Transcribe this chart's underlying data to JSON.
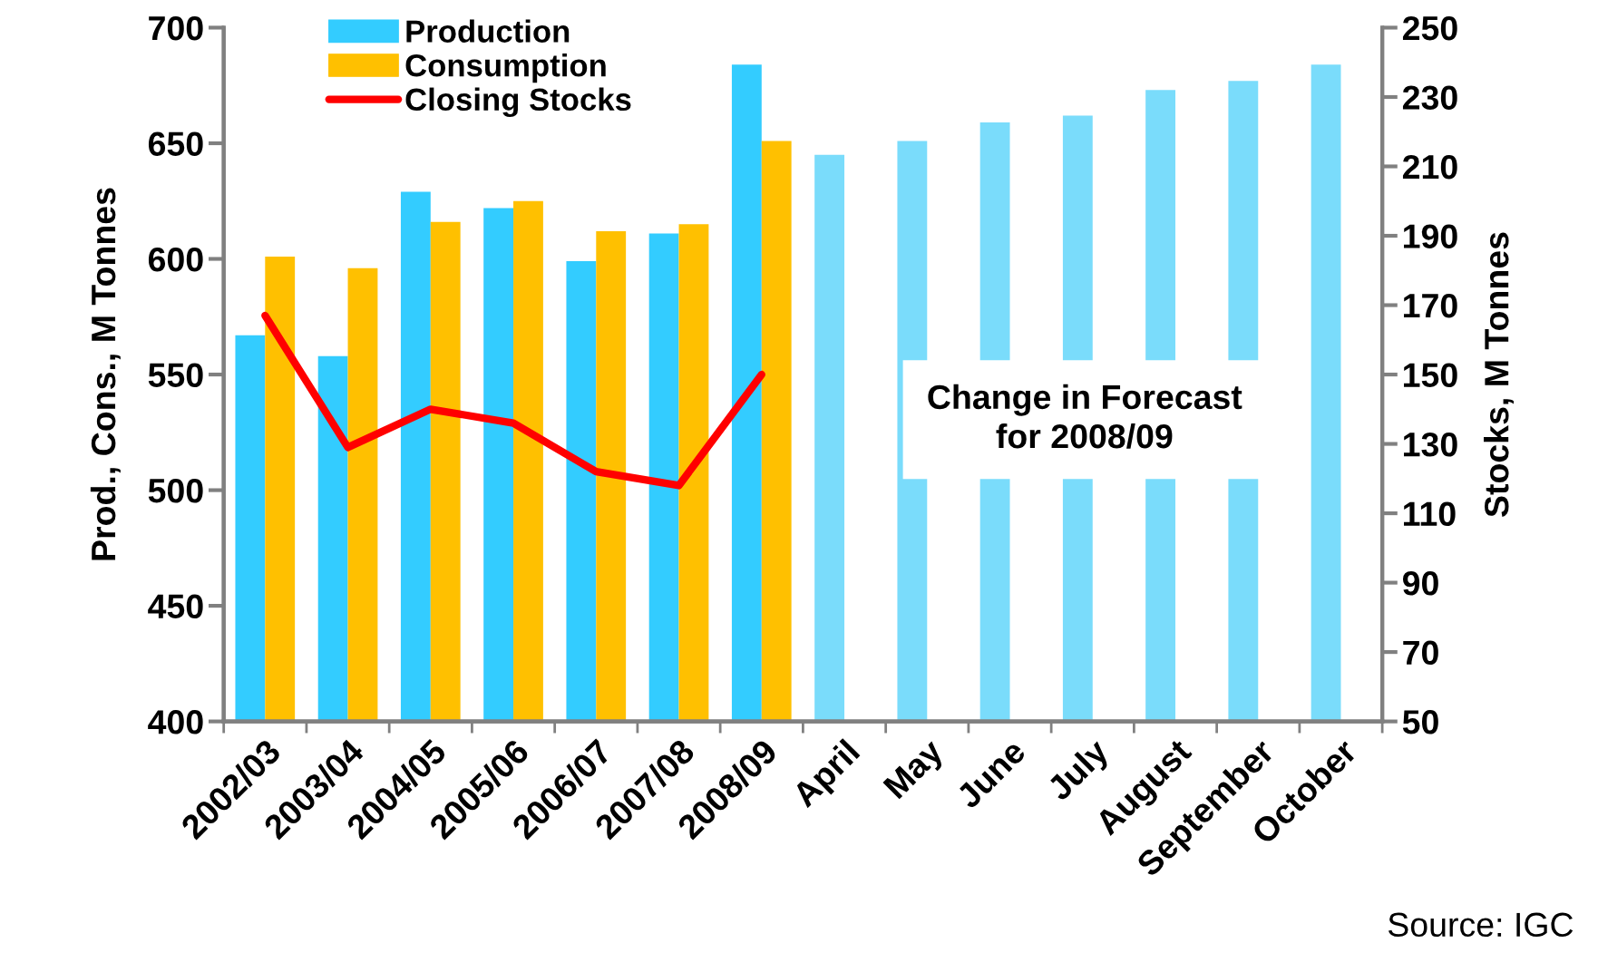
{
  "chart_data": {
    "type": "bar",
    "categories": [
      "2002/03",
      "2003/04",
      "2004/05",
      "2005/06",
      "2006/07",
      "2007/08",
      "2008/09",
      "April",
      "May",
      "June",
      "July",
      "August",
      "September",
      "October"
    ],
    "series": [
      {
        "name": "Production",
        "color": "#33ccff",
        "colors": [
          "#33ccff",
          "#33ccff",
          "#33ccff",
          "#33ccff",
          "#33ccff",
          "#33ccff",
          "#33ccff",
          "#7adcfb",
          "#7adcfb",
          "#7adcfb",
          "#7adcfb",
          "#7adcfb",
          "#7adcfb",
          "#7adcfb"
        ],
        "values": [
          567,
          558,
          629,
          622,
          599,
          611,
          684,
          645,
          651,
          659,
          662,
          673,
          677,
          684
        ]
      },
      {
        "name": "Consumption",
        "color": "#ffc000",
        "values": [
          601,
          596,
          616,
          625,
          612,
          615,
          651,
          null,
          null,
          null,
          null,
          null,
          null,
          null
        ]
      },
      {
        "name": "Closing Stocks",
        "type": "line",
        "axis": "y2",
        "color": "#ff0000",
        "values": [
          167,
          129,
          140,
          136,
          122,
          118,
          150,
          null,
          null,
          null,
          null,
          null,
          null,
          null
        ]
      }
    ],
    "ylabel": "Prod., Cons., M Tonnes",
    "y2label": "Stocks, M Tonnes",
    "ylim": [
      400,
      700
    ],
    "yticks": [
      400,
      450,
      500,
      550,
      600,
      650,
      700
    ],
    "y2lim": [
      50,
      250
    ],
    "y2ticks": [
      50,
      70,
      90,
      110,
      130,
      150,
      170,
      190,
      210,
      230,
      250
    ],
    "annotations": [
      "Change in Forecast\nfor 2008/09",
      "Source: IGC"
    ],
    "legend": "top left",
    "grid": false,
    "marker": "none",
    "line_style": "solid"
  }
}
